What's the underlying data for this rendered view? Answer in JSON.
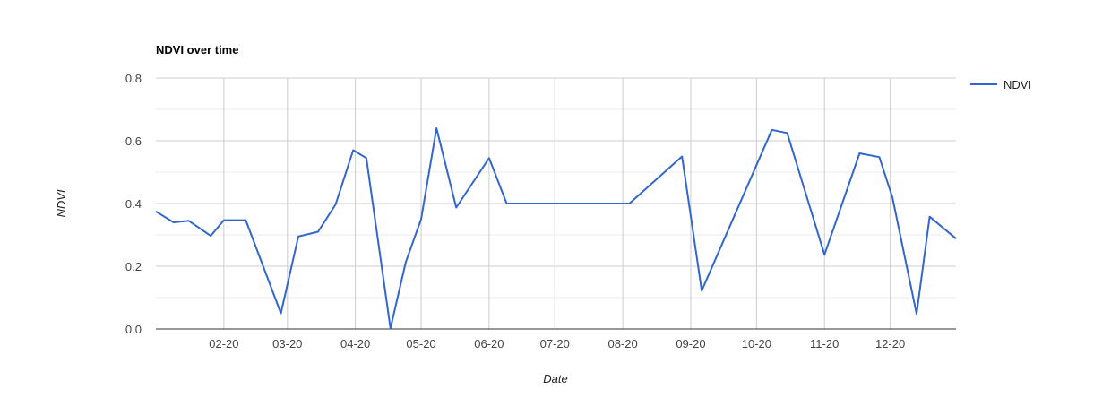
{
  "chart_data": {
    "type": "line",
    "title": "NDVI over time",
    "xlabel": "Date",
    "ylabel": "NDVI",
    "x_axis_type": "date",
    "x_range": [
      "2020-01-01",
      "2020-12-31"
    ],
    "xticks": [
      {
        "date": "2020-02-01",
        "label": "02-20"
      },
      {
        "date": "2020-03-01",
        "label": "03-20"
      },
      {
        "date": "2020-04-01",
        "label": "04-20"
      },
      {
        "date": "2020-05-01",
        "label": "05-20"
      },
      {
        "date": "2020-06-01",
        "label": "06-20"
      },
      {
        "date": "2020-07-01",
        "label": "07-20"
      },
      {
        "date": "2020-08-01",
        "label": "08-20"
      },
      {
        "date": "2020-09-01",
        "label": "09-20"
      },
      {
        "date": "2020-10-01",
        "label": "10-20"
      },
      {
        "date": "2020-11-01",
        "label": "11-20"
      },
      {
        "date": "2020-12-01",
        "label": "12-20"
      }
    ],
    "ylim": [
      0,
      0.8
    ],
    "yticks": [
      0.0,
      0.2,
      0.4,
      0.6,
      0.8
    ],
    "ytick_labels": [
      "0.0",
      "0.2",
      "0.4",
      "0.6",
      "0.8"
    ],
    "grid": true,
    "legend_position": "right",
    "series": [
      {
        "name": "NDVI",
        "color": "#3366cc",
        "points": [
          {
            "x": "2020-01-01",
            "y": 0.375
          },
          {
            "x": "2020-01-09",
            "y": 0.34
          },
          {
            "x": "2020-01-16",
            "y": 0.345
          },
          {
            "x": "2020-01-26",
            "y": 0.297
          },
          {
            "x": "2020-02-01",
            "y": 0.347
          },
          {
            "x": "2020-02-11",
            "y": 0.347
          },
          {
            "x": "2020-02-27",
            "y": 0.05
          },
          {
            "x": "2020-03-06",
            "y": 0.295
          },
          {
            "x": "2020-03-15",
            "y": 0.31
          },
          {
            "x": "2020-03-23",
            "y": 0.397
          },
          {
            "x": "2020-03-31",
            "y": 0.57
          },
          {
            "x": "2020-04-06",
            "y": 0.545
          },
          {
            "x": "2020-04-17",
            "y": 0.002
          },
          {
            "x": "2020-04-24",
            "y": 0.213
          },
          {
            "x": "2020-05-01",
            "y": 0.35
          },
          {
            "x": "2020-05-08",
            "y": 0.64
          },
          {
            "x": "2020-05-17",
            "y": 0.387
          },
          {
            "x": "2020-06-01",
            "y": 0.545
          },
          {
            "x": "2020-06-09",
            "y": 0.4
          },
          {
            "x": "2020-08-04",
            "y": 0.4
          },
          {
            "x": "2020-08-28",
            "y": 0.55
          },
          {
            "x": "2020-09-06",
            "y": 0.122
          },
          {
            "x": "2020-10-08",
            "y": 0.635
          },
          {
            "x": "2020-10-15",
            "y": 0.625
          },
          {
            "x": "2020-11-01",
            "y": 0.237
          },
          {
            "x": "2020-11-17",
            "y": 0.56
          },
          {
            "x": "2020-11-26",
            "y": 0.548
          },
          {
            "x": "2020-12-02",
            "y": 0.42
          },
          {
            "x": "2020-12-13",
            "y": 0.048
          },
          {
            "x": "2020-12-19",
            "y": 0.358
          },
          {
            "x": "2020-12-31",
            "y": 0.288
          }
        ]
      }
    ]
  }
}
